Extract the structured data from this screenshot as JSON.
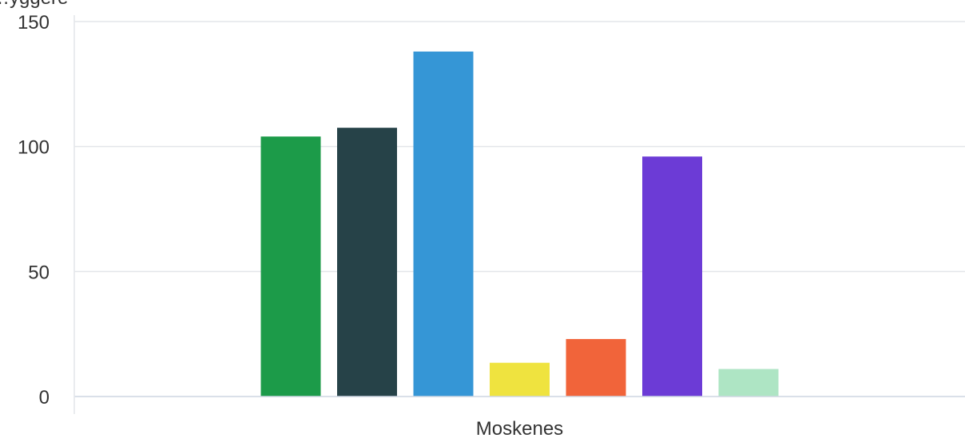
{
  "chart_data": {
    "type": "bar",
    "title": "",
    "xlabel": "",
    "ylabel": "…yggere",
    "categories": [
      "Moskenes"
    ],
    "ylim": [
      0,
      150
    ],
    "yticks": [
      0,
      50,
      100,
      150
    ],
    "grid": true,
    "legend": "none",
    "series": [
      {
        "values": [
          104
        ],
        "color": "#1c9b49"
      },
      {
        "values": [
          107.5
        ],
        "color": "#264248"
      },
      {
        "values": [
          138
        ],
        "color": "#3596d6"
      },
      {
        "values": [
          13.5
        ],
        "color": "#efe33f"
      },
      {
        "values": [
          23
        ],
        "color": "#f1643a"
      },
      {
        "values": [
          96
        ],
        "color": "#6c3bd6"
      },
      {
        "values": [
          11
        ],
        "color": "#aee5c4"
      }
    ]
  }
}
